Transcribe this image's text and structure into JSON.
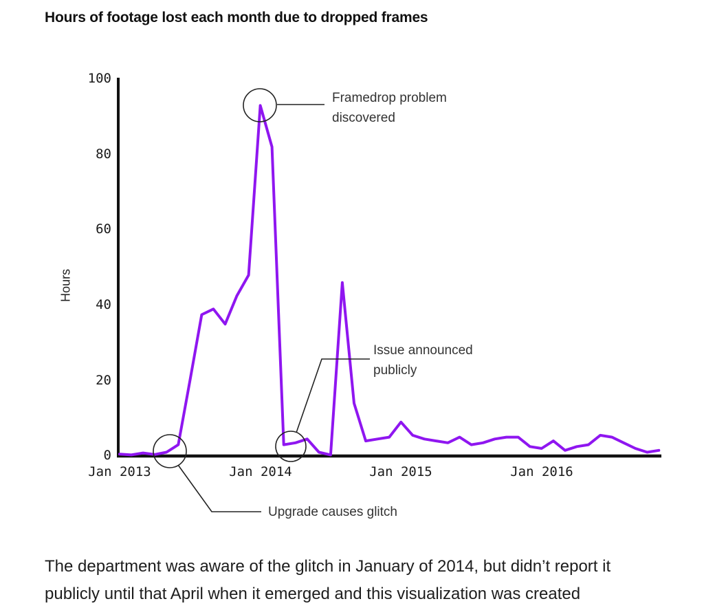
{
  "page": {
    "background": "#ffffff"
  },
  "chart_data": {
    "type": "line",
    "title": "Hours of footage lost each month due to dropped frames",
    "ylabel": "Hours",
    "xlabel": "",
    "ylim": [
      0,
      100
    ],
    "yticks": [
      0,
      20,
      40,
      60,
      80,
      100
    ],
    "xticks": [
      "Jan 2013",
      "Jan 2014",
      "Jan 2015",
      "Jan 2016"
    ],
    "grid": false,
    "legend": false,
    "line_color": "#8f16f0",
    "axis_color": "#111111",
    "annotation_color": "#222222",
    "x": [
      "2013-01",
      "2013-02",
      "2013-03",
      "2013-04",
      "2013-05",
      "2013-06",
      "2013-07",
      "2013-08",
      "2013-09",
      "2013-10",
      "2013-11",
      "2013-12",
      "2014-01",
      "2014-02",
      "2014-03",
      "2014-04",
      "2014-05",
      "2014-06",
      "2014-07",
      "2014-08",
      "2014-09",
      "2014-10",
      "2014-11",
      "2014-12",
      "2015-01",
      "2015-02",
      "2015-03",
      "2015-04",
      "2015-05",
      "2015-06",
      "2015-07",
      "2015-08",
      "2015-09",
      "2015-10",
      "2015-11",
      "2015-12",
      "2016-01",
      "2016-02",
      "2016-03",
      "2016-04",
      "2016-05",
      "2016-06",
      "2016-07",
      "2016-08",
      "2016-09",
      "2016-10",
      "2016-11"
    ],
    "values": [
      0.5,
      0.3,
      0.8,
      0.4,
      1,
      3,
      20,
      37.5,
      39,
      35,
      42.5,
      48,
      93,
      82,
      3,
      3.5,
      4.5,
      1,
      0.3,
      46,
      14,
      4,
      4.5,
      5,
      9,
      5.5,
      4.5,
      4,
      3.5,
      5,
      3,
      3.5,
      4.5,
      5,
      5,
      2.5,
      2,
      4,
      1.5,
      2.5,
      3,
      5.5,
      5,
      3.5,
      2,
      1,
      1.5
    ],
    "annotations": [
      {
        "id": "framedrop-discovered",
        "x": "2014-01",
        "y": 93,
        "lines": [
          "Framedrop problem",
          "discovered"
        ]
      },
      {
        "id": "issue-announced",
        "x": "2014-03",
        "y": 3,
        "lines": [
          "Issue announced",
          "publicly"
        ]
      },
      {
        "id": "upgrade-glitch",
        "x": "2013-05",
        "y": 1,
        "lines": [
          "Upgrade causes glitch"
        ]
      }
    ]
  },
  "caption": {
    "line1": "The department was aware of the glitch in January of 2014, but didn’t report it",
    "line2": "publicly until that April when it emerged and this visualization was created"
  }
}
